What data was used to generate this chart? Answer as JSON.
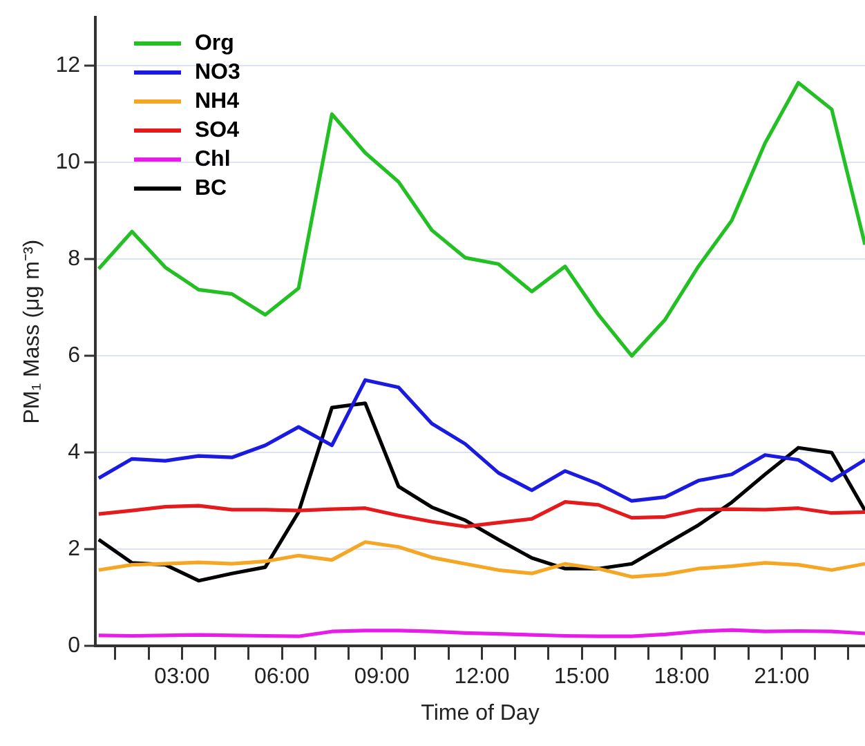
{
  "chart_data": {
    "type": "line",
    "xlabel": "Time of Day",
    "ylabel": "PM₁ Mass (μg m⁻³)",
    "x": [
      0.5,
      1.5,
      2.5,
      3.5,
      4.5,
      5.5,
      6.5,
      7.5,
      8.5,
      9.5,
      10.5,
      11.5,
      12.5,
      13.5,
      14.5,
      15.5,
      16.5,
      17.5,
      18.5,
      19.5,
      20.5,
      21.5,
      22.5,
      23.5
    ],
    "xlim": [
      0.4,
      23.5
    ],
    "xticks": [
      {
        "value": 1,
        "label": null
      },
      {
        "value": 2,
        "label": null
      },
      {
        "value": 3,
        "label": "03:00"
      },
      {
        "value": 4,
        "label": null
      },
      {
        "value": 5,
        "label": null
      },
      {
        "value": 6,
        "label": "06:00"
      },
      {
        "value": 7,
        "label": null
      },
      {
        "value": 8,
        "label": null
      },
      {
        "value": 9,
        "label": "09:00"
      },
      {
        "value": 10,
        "label": null
      },
      {
        "value": 11,
        "label": null
      },
      {
        "value": 12,
        "label": "12:00"
      },
      {
        "value": 13,
        "label": null
      },
      {
        "value": 14,
        "label": null
      },
      {
        "value": 15,
        "label": "15:00"
      },
      {
        "value": 16,
        "label": null
      },
      {
        "value": 17,
        "label": null
      },
      {
        "value": 18,
        "label": "18:00"
      },
      {
        "value": 19,
        "label": null
      },
      {
        "value": 20,
        "label": null
      },
      {
        "value": 21,
        "label": "21:00"
      },
      {
        "value": 22,
        "label": null
      },
      {
        "value": 23,
        "label": null
      }
    ],
    "ylim": [
      0,
      13
    ],
    "yticks": [
      0,
      2,
      4,
      6,
      8,
      10,
      12
    ],
    "grid": "y",
    "legend": "top left",
    "marker": "none",
    "line_style": "solid",
    "series": [
      {
        "name": "Org",
        "color": "#22c022",
        "values": [
          7.8,
          8.57,
          7.83,
          7.37,
          7.28,
          6.85,
          7.4,
          11.0,
          10.2,
          9.6,
          8.6,
          8.03,
          7.9,
          7.33,
          7.85,
          6.85,
          6.0,
          6.75,
          7.85,
          8.8,
          10.4,
          11.65,
          11.1,
          8.3
        ]
      },
      {
        "name": "NO3",
        "color": "#1a1ae0",
        "values": [
          3.47,
          3.87,
          3.83,
          3.93,
          3.9,
          4.15,
          4.53,
          4.15,
          5.5,
          5.35,
          4.6,
          4.18,
          3.58,
          3.22,
          3.62,
          3.35,
          3.0,
          3.08,
          3.42,
          3.55,
          3.95,
          3.85,
          3.42,
          3.85
        ]
      },
      {
        "name": "NH4",
        "color": "#f5a623",
        "values": [
          1.57,
          1.68,
          1.7,
          1.73,
          1.7,
          1.75,
          1.87,
          1.78,
          2.15,
          2.05,
          1.83,
          1.7,
          1.57,
          1.5,
          1.7,
          1.6,
          1.43,
          1.48,
          1.6,
          1.65,
          1.72,
          1.68,
          1.57,
          1.7
        ]
      },
      {
        "name": "SO4",
        "color": "#e41a1c",
        "values": [
          2.73,
          2.8,
          2.88,
          2.9,
          2.82,
          2.82,
          2.8,
          2.83,
          2.85,
          2.7,
          2.57,
          2.47,
          2.55,
          2.63,
          2.98,
          2.92,
          2.65,
          2.67,
          2.82,
          2.83,
          2.82,
          2.85,
          2.75,
          2.77
        ]
      },
      {
        "name": "Chl",
        "color": "#e81ce8",
        "values": [
          0.22,
          0.21,
          0.22,
          0.23,
          0.22,
          0.21,
          0.2,
          0.3,
          0.32,
          0.32,
          0.3,
          0.27,
          0.25,
          0.23,
          0.21,
          0.2,
          0.2,
          0.24,
          0.3,
          0.33,
          0.3,
          0.31,
          0.3,
          0.26
        ]
      },
      {
        "name": "BC",
        "color": "#000000",
        "values": [
          2.2,
          1.72,
          1.68,
          1.35,
          1.5,
          1.63,
          2.77,
          4.93,
          5.02,
          3.3,
          2.87,
          2.6,
          2.2,
          1.82,
          1.6,
          1.6,
          1.7,
          2.1,
          2.5,
          2.97,
          3.55,
          4.1,
          4.0,
          2.8
        ]
      }
    ]
  }
}
